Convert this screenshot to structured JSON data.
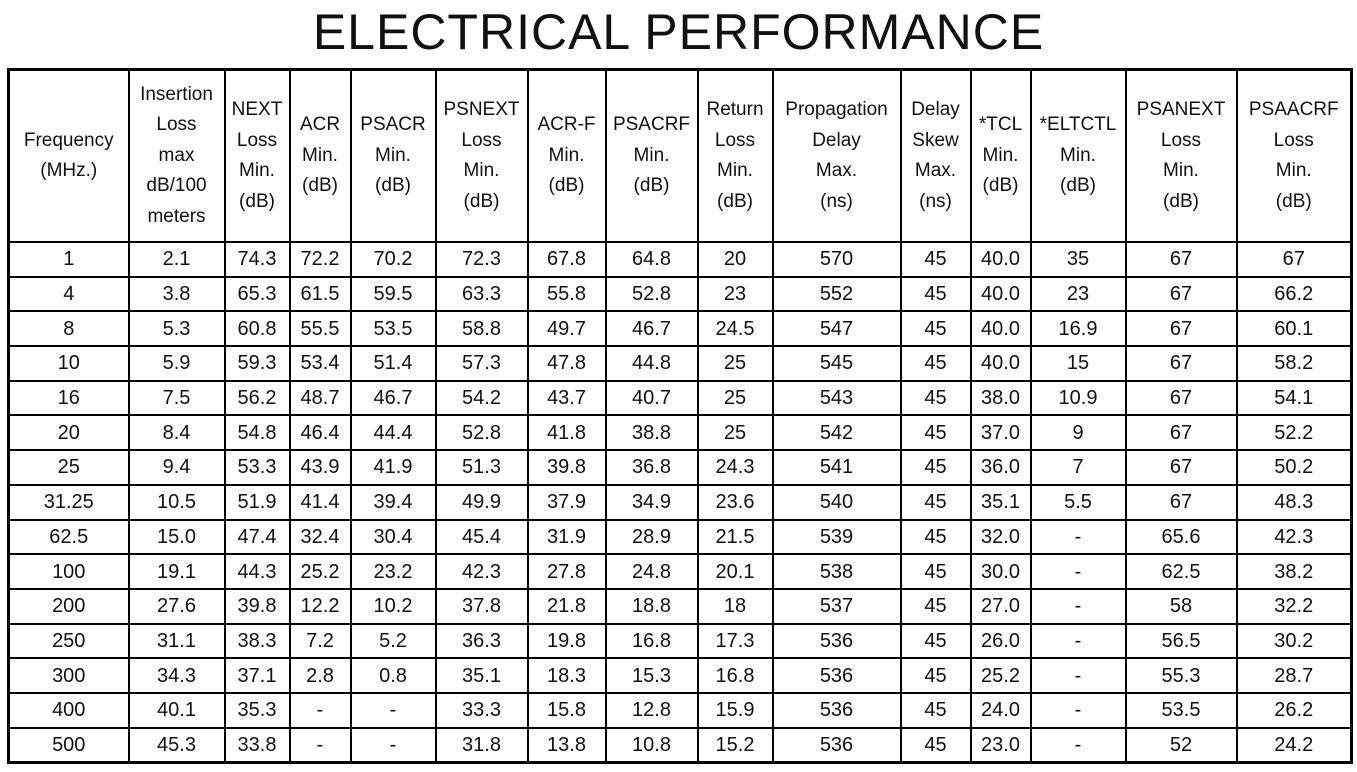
{
  "title": "ELECTRICAL PERFORMANCE",
  "columns": [
    [
      "Frequency",
      "(MHz.)"
    ],
    [
      "Insertion",
      "Loss",
      "max",
      "dB/100",
      "meters"
    ],
    [
      "NEXT",
      "Loss",
      "Min.",
      "(dB)"
    ],
    [
      "ACR",
      "Min.",
      "(dB)"
    ],
    [
      "PSACR",
      "Min.",
      "(dB)"
    ],
    [
      "PSNEXT",
      "Loss",
      "Min.",
      "(dB)"
    ],
    [
      "ACR-F",
      "Min.",
      "(dB)"
    ],
    [
      "PSACRF",
      "Min.",
      "(dB)"
    ],
    [
      "Return",
      "Loss",
      "Min.",
      "(dB)"
    ],
    [
      "Propagation",
      "Delay",
      "Max.",
      "(ns)"
    ],
    [
      "Delay",
      "Skew",
      "Max.",
      "(ns)"
    ],
    [
      "*TCL",
      "Min.",
      "(dB)"
    ],
    [
      "*ELTCTL",
      "Min.",
      "(dB)"
    ],
    [
      "PSANEXT",
      "Loss",
      "Min.",
      "(dB)"
    ],
    [
      "PSAACRF",
      "Loss",
      "Min.",
      "(dB)"
    ]
  ],
  "rows": [
    [
      "1",
      "2.1",
      "74.3",
      "72.2",
      "70.2",
      "72.3",
      "67.8",
      "64.8",
      "20",
      "570",
      "45",
      "40.0",
      "35",
      "67",
      "67"
    ],
    [
      "4",
      "3.8",
      "65.3",
      "61.5",
      "59.5",
      "63.3",
      "55.8",
      "52.8",
      "23",
      "552",
      "45",
      "40.0",
      "23",
      "67",
      "66.2"
    ],
    [
      "8",
      "5.3",
      "60.8",
      "55.5",
      "53.5",
      "58.8",
      "49.7",
      "46.7",
      "24.5",
      "547",
      "45",
      "40.0",
      "16.9",
      "67",
      "60.1"
    ],
    [
      "10",
      "5.9",
      "59.3",
      "53.4",
      "51.4",
      "57.3",
      "47.8",
      "44.8",
      "25",
      "545",
      "45",
      "40.0",
      "15",
      "67",
      "58.2"
    ],
    [
      "16",
      "7.5",
      "56.2",
      "48.7",
      "46.7",
      "54.2",
      "43.7",
      "40.7",
      "25",
      "543",
      "45",
      "38.0",
      "10.9",
      "67",
      "54.1"
    ],
    [
      "20",
      "8.4",
      "54.8",
      "46.4",
      "44.4",
      "52.8",
      "41.8",
      "38.8",
      "25",
      "542",
      "45",
      "37.0",
      "9",
      "67",
      "52.2"
    ],
    [
      "25",
      "9.4",
      "53.3",
      "43.9",
      "41.9",
      "51.3",
      "39.8",
      "36.8",
      "24.3",
      "541",
      "45",
      "36.0",
      "7",
      "67",
      "50.2"
    ],
    [
      "31.25",
      "10.5",
      "51.9",
      "41.4",
      "39.4",
      "49.9",
      "37.9",
      "34.9",
      "23.6",
      "540",
      "45",
      "35.1",
      "5.5",
      "67",
      "48.3"
    ],
    [
      "62.5",
      "15.0",
      "47.4",
      "32.4",
      "30.4",
      "45.4",
      "31.9",
      "28.9",
      "21.5",
      "539",
      "45",
      "32.0",
      "-",
      "65.6",
      "42.3"
    ],
    [
      "100",
      "19.1",
      "44.3",
      "25.2",
      "23.2",
      "42.3",
      "27.8",
      "24.8",
      "20.1",
      "538",
      "45",
      "30.0",
      "-",
      "62.5",
      "38.2"
    ],
    [
      "200",
      "27.6",
      "39.8",
      "12.2",
      "10.2",
      "37.8",
      "21.8",
      "18.8",
      "18",
      "537",
      "45",
      "27.0",
      "-",
      "58",
      "32.2"
    ],
    [
      "250",
      "31.1",
      "38.3",
      "7.2",
      "5.2",
      "36.3",
      "19.8",
      "16.8",
      "17.3",
      "536",
      "45",
      "26.0",
      "-",
      "56.5",
      "30.2"
    ],
    [
      "300",
      "34.3",
      "37.1",
      "2.8",
      "0.8",
      "35.1",
      "18.3",
      "15.3",
      "16.8",
      "536",
      "45",
      "25.2",
      "-",
      "55.3",
      "28.7"
    ],
    [
      "400",
      "40.1",
      "35.3",
      "-",
      "-",
      "33.3",
      "15.8",
      "12.8",
      "15.9",
      "536",
      "45",
      "24.0",
      "-",
      "53.5",
      "26.2"
    ],
    [
      "500",
      "45.3",
      "33.8",
      "-",
      "-",
      "31.8",
      "13.8",
      "10.8",
      "15.2",
      "536",
      "45",
      "23.0",
      "-",
      "52",
      "24.2"
    ]
  ]
}
